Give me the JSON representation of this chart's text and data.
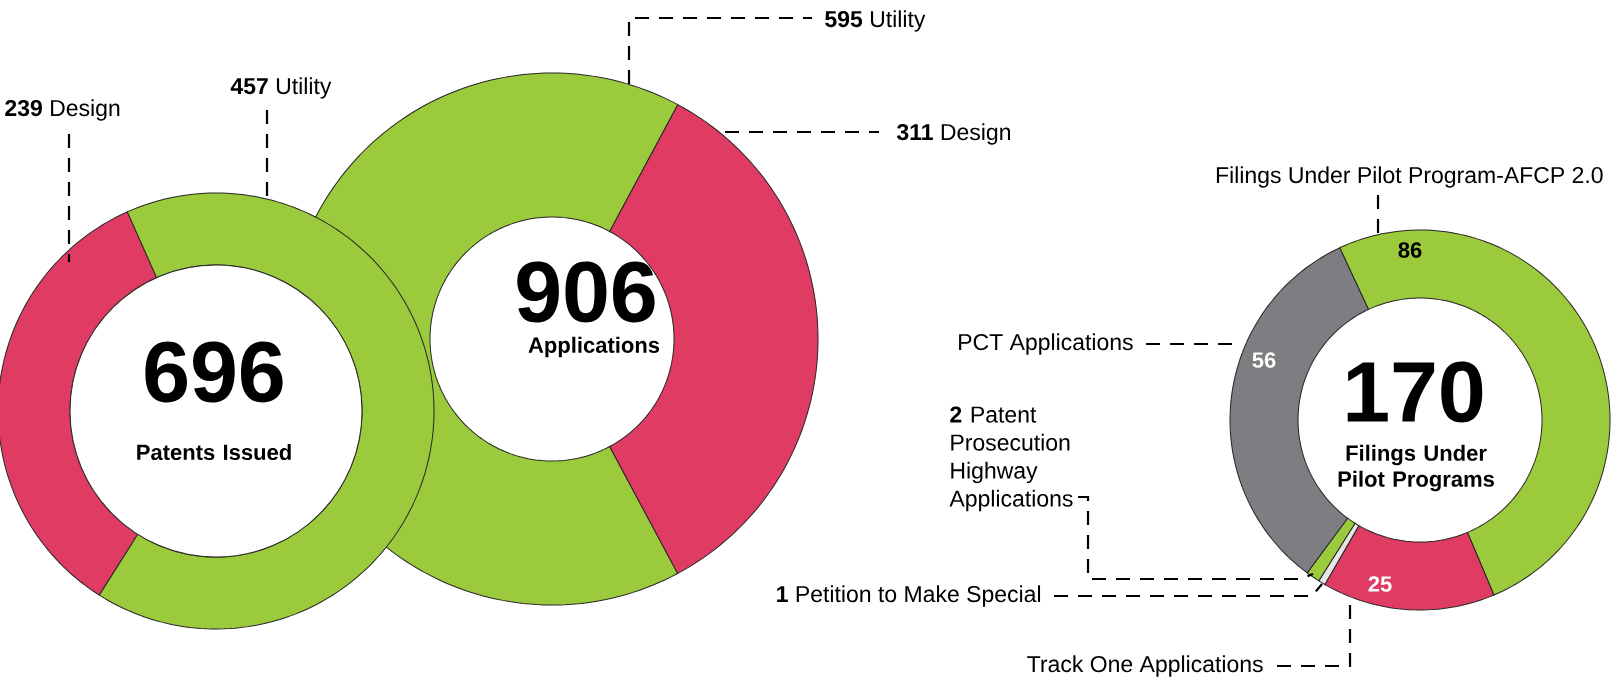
{
  "chart_data": [
    {
      "type": "donut",
      "title": "696",
      "subtitle": "Patents Issued",
      "categories": [
        "Design",
        "Utility"
      ],
      "values": [
        239,
        457
      ],
      "colors": [
        "#e03c63",
        "#9bcb3c"
      ],
      "data_labels": true
    },
    {
      "type": "donut",
      "title": "906",
      "subtitle": "Applications",
      "categories": [
        "Utility",
        "Design"
      ],
      "values": [
        595,
        311
      ],
      "colors": [
        "#9bcb3c",
        "#e03c63"
      ],
      "data_labels": true
    },
    {
      "type": "donut",
      "title": "170",
      "subtitle": "Filings Under Pilot Programs",
      "categories": [
        "Filings Under Pilot Program-AFCP 2.0",
        "Track One Applications",
        "Petition to Make Special",
        "Patent Prosecution Highway Applications",
        "PCT Applications"
      ],
      "values": [
        86,
        25,
        1,
        2,
        56
      ],
      "colors": [
        "#9bcb3c",
        "#e03c63",
        "#e6e6e6",
        "#9bcb3c",
        "#7d7d82"
      ],
      "data_labels": true
    }
  ]
}
